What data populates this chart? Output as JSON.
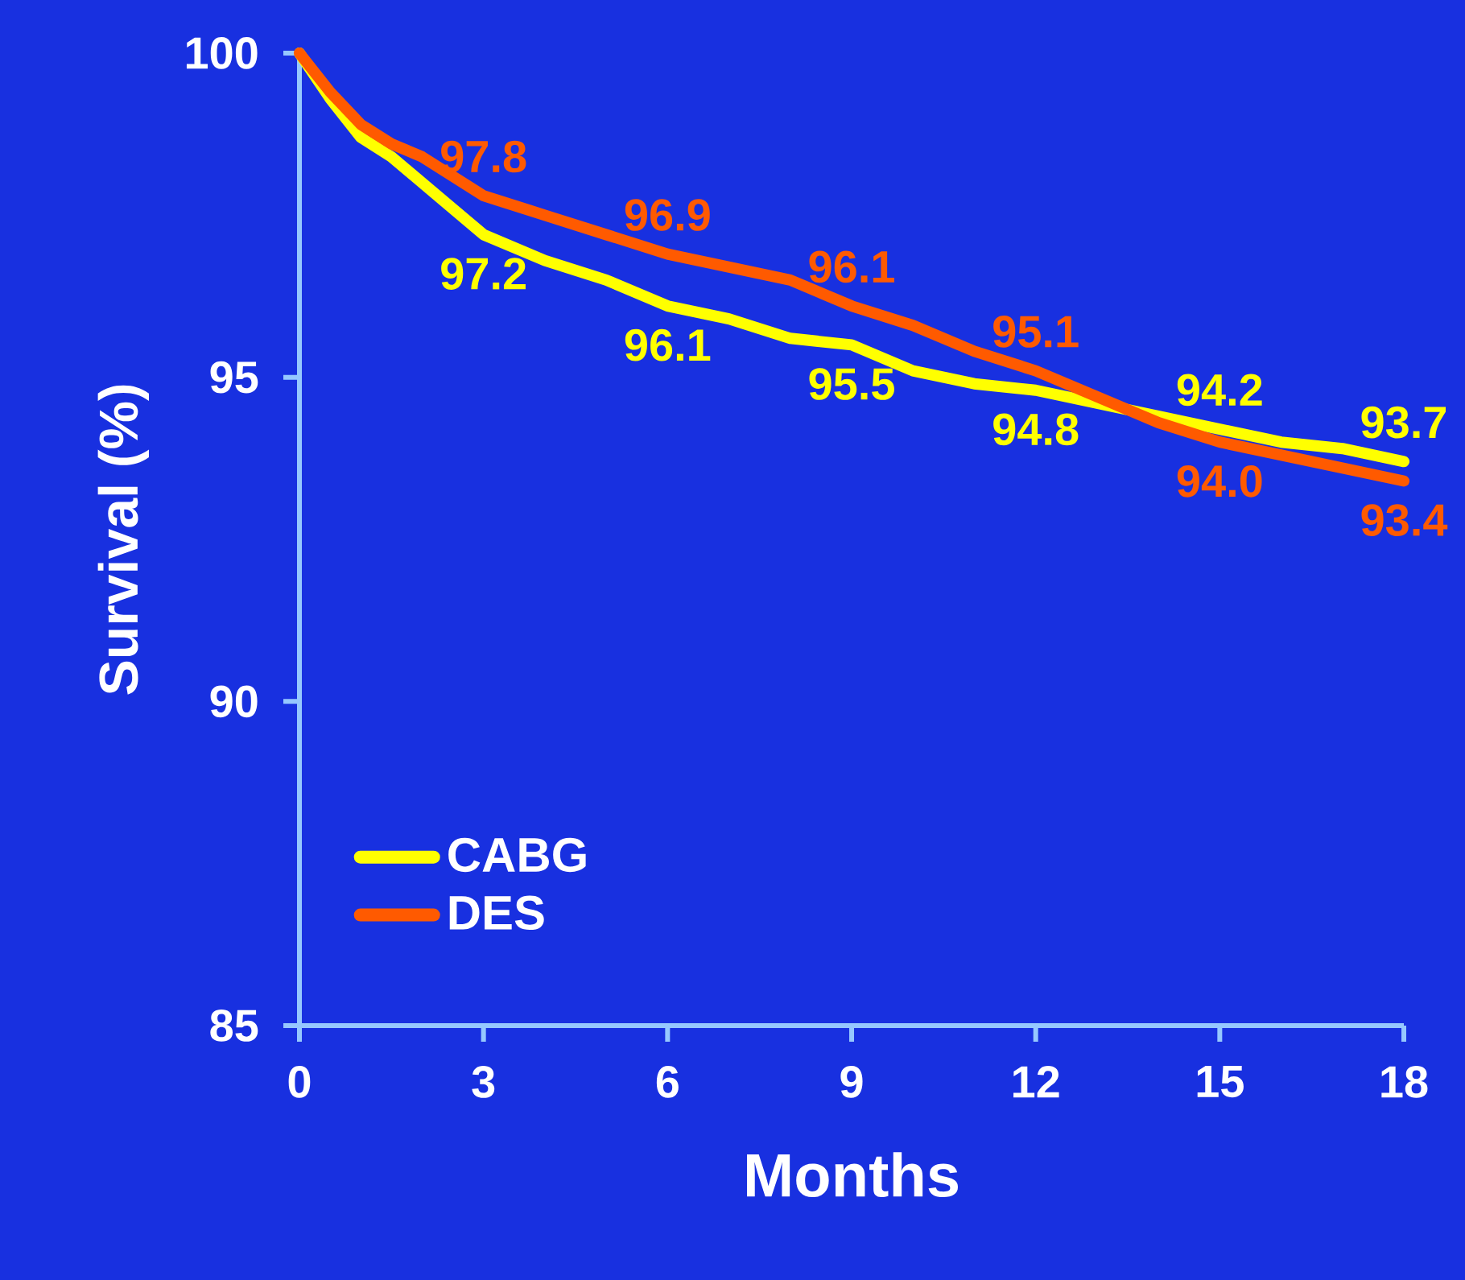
{
  "chart_data": {
    "type": "line",
    "xlabel": "Months",
    "ylabel": "Survival (%)",
    "x": [
      0,
      0.5,
      1,
      1.5,
      2,
      3,
      4,
      5,
      6,
      7,
      8,
      9,
      10,
      11,
      12,
      13,
      14,
      15,
      16,
      17,
      18
    ],
    "series": [
      {
        "name": "CABG",
        "color": "#ffff00",
        "values": [
          100,
          99.3,
          98.7,
          98.4,
          98.0,
          97.2,
          96.8,
          96.5,
          96.1,
          95.9,
          95.6,
          95.5,
          95.1,
          94.9,
          94.8,
          94.6,
          94.4,
          94.2,
          94.0,
          93.9,
          93.7
        ],
        "value_labels": [
          null,
          null,
          null,
          null,
          null,
          "97.2",
          null,
          null,
          "96.1",
          null,
          null,
          "95.5",
          null,
          null,
          "94.8",
          null,
          null,
          "94.2",
          null,
          null,
          "93.7"
        ]
      },
      {
        "name": "DES",
        "color": "#ff5a00",
        "values": [
          100,
          99.4,
          98.9,
          98.6,
          98.4,
          97.8,
          97.5,
          97.2,
          96.9,
          96.7,
          96.5,
          96.1,
          95.8,
          95.4,
          95.1,
          94.7,
          94.3,
          94.0,
          93.8,
          93.6,
          93.4
        ],
        "value_labels": [
          null,
          null,
          null,
          null,
          null,
          "97.8",
          null,
          null,
          "96.9",
          null,
          null,
          "96.1",
          null,
          null,
          "95.1",
          null,
          null,
          "94.0",
          null,
          null,
          "93.4"
        ]
      }
    ],
    "xlim": [
      0,
      18
    ],
    "ylim": [
      85,
      100
    ],
    "xticks": [
      0,
      3,
      6,
      9,
      12,
      15,
      18
    ],
    "yticks": [
      85,
      90,
      95,
      100
    ],
    "legend": "bottom left",
    "grid": false,
    "marker": "none",
    "line_style": "solid"
  }
}
